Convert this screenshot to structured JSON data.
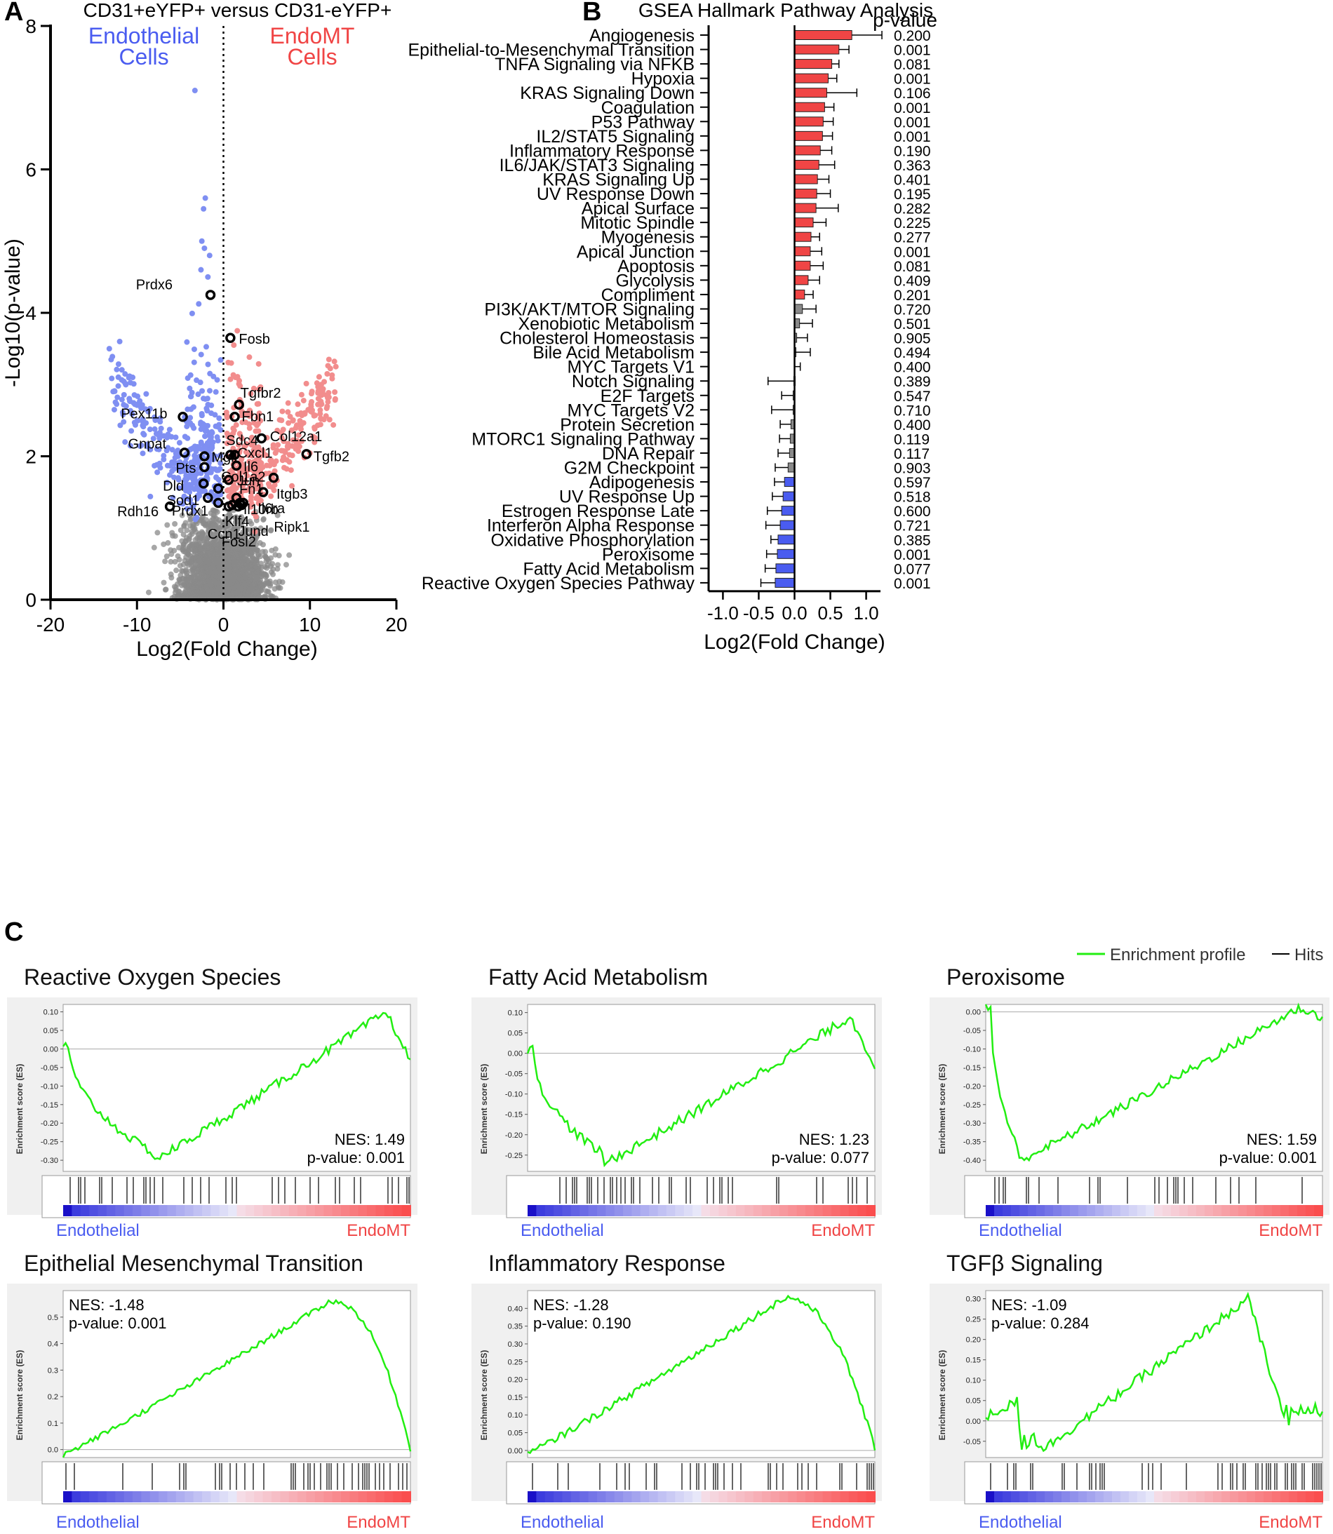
{
  "panels": {
    "a": "A",
    "b": "B",
    "c": "C"
  },
  "colors": {
    "blue": "#4a5cf0",
    "red": "#f04545",
    "grey": "#8a8a8a",
    "green": "#22ee11",
    "lightblue": "#7f8ff2",
    "lightred": "#f28d8d"
  },
  "chart_data": [
    {
      "type": "scatter",
      "id": "volcano",
      "title": "CD31+eYFP+ versus CD31-eYFP+",
      "xlabel": "Log2(Fold Change)",
      "ylabel": "-Log10(p-value)",
      "xlim": [
        -20,
        20
      ],
      "ylim": [
        0,
        8
      ],
      "xticks": [
        -20,
        -10,
        0,
        10,
        20
      ],
      "yticks": [
        0,
        2,
        4,
        6,
        8
      ],
      "group_labels": {
        "left_line1": "Endothelial",
        "left_line2": "Cells",
        "right_line1": "EndoMT",
        "right_line2": "Cells"
      },
      "highlighted_genes": [
        {
          "name": "Prdx6",
          "x": -1.5,
          "y": 4.25
        },
        {
          "name": "Fosb",
          "x": 0.8,
          "y": 3.65
        },
        {
          "name": "Tgfbr2",
          "x": 1.8,
          "y": 2.72
        },
        {
          "name": "Fbn1",
          "x": 1.3,
          "y": 2.55
        },
        {
          "name": "Pex11b",
          "x": -4.7,
          "y": 2.55
        },
        {
          "name": "Col12a1",
          "x": 4.4,
          "y": 2.25
        },
        {
          "name": "Tgfb2",
          "x": 9.6,
          "y": 2.03
        },
        {
          "name": "Sdc4",
          "x": 0.8,
          "y": 2.02
        },
        {
          "name": "Cxcl1",
          "x": 1.3,
          "y": 2.02
        },
        {
          "name": "Gnpat",
          "x": -4.5,
          "y": 2.05
        },
        {
          "name": "Mgll",
          "x": -2.2,
          "y": 2.0
        },
        {
          "name": "Il6",
          "x": 1.5,
          "y": 1.87
        },
        {
          "name": "Pts",
          "x": -2.2,
          "y": 1.85
        },
        {
          "name": "Itgb3",
          "x": 5.8,
          "y": 1.7
        },
        {
          "name": "Jun",
          "x": 0.6,
          "y": 1.67
        },
        {
          "name": "Dld",
          "x": -2.3,
          "y": 1.62
        },
        {
          "name": "Col1a2",
          "x": -0.6,
          "y": 1.55
        },
        {
          "name": "Sod1",
          "x": -1.8,
          "y": 1.42
        },
        {
          "name": "Il6ra",
          "x": 4.6,
          "y": 1.5
        },
        {
          "name": "Fn1",
          "x": 1.5,
          "y": 1.42
        },
        {
          "name": "Il10rb",
          "x": 2.3,
          "y": 1.35
        },
        {
          "name": "Prdx1",
          "x": -0.6,
          "y": 1.35
        },
        {
          "name": "Rdh16",
          "x": -6.2,
          "y": 1.3
        },
        {
          "name": "Klf4",
          "x": 1.0,
          "y": 1.32
        },
        {
          "name": "Ripk1",
          "x": 2.1,
          "y": 1.32
        },
        {
          "name": "Jund",
          "x": 1.7,
          "y": 1.3
        },
        {
          "name": "Ccn1",
          "x": 0.6,
          "y": 1.3
        },
        {
          "name": "Fosl2",
          "x": 1.9,
          "y": 1.35
        }
      ]
    },
    {
      "type": "bar",
      "id": "gsea-hallmark",
      "title": "GSEA Hallmark Pathway Analysis",
      "xlabel": "Log2(Fold Change)",
      "pvalue_header": "p-value",
      "xlim": [
        -1.2,
        1.2
      ],
      "xticks": [
        "-1.0",
        "-0.5",
        "0.0",
        "0.5",
        "1.0"
      ],
      "rows": [
        {
          "label": "Angiogenesis",
          "value": 0.8,
          "err": 0.42,
          "p": "0.200",
          "color": "red"
        },
        {
          "label": "Epithelial-to-Mesenchymal Transition",
          "value": 0.62,
          "err": 0.14,
          "p": "0.001",
          "color": "red"
        },
        {
          "label": "TNFA Signaling via NFKB",
          "value": 0.52,
          "err": 0.1,
          "p": "0.081",
          "color": "red"
        },
        {
          "label": "Hypoxia",
          "value": 0.47,
          "err": 0.12,
          "p": "0.001",
          "color": "red"
        },
        {
          "label": "KRAS Signaling Down",
          "value": 0.45,
          "err": 0.42,
          "p": "0.106",
          "color": "red"
        },
        {
          "label": "Coagulation",
          "value": 0.42,
          "err": 0.13,
          "p": "0.001",
          "color": "red"
        },
        {
          "label": "P53 Pathway",
          "value": 0.4,
          "err": 0.14,
          "p": "0.001",
          "color": "red"
        },
        {
          "label": "IL2/STAT5 Signaling",
          "value": 0.39,
          "err": 0.14,
          "p": "0.001",
          "color": "red"
        },
        {
          "label": "Inflammatory Response",
          "value": 0.36,
          "err": 0.16,
          "p": "0.190",
          "color": "red"
        },
        {
          "label": "IL6/JAK/STAT3 Signaling",
          "value": 0.34,
          "err": 0.22,
          "p": "0.363",
          "color": "red"
        },
        {
          "label": "KRAS Signaling Up",
          "value": 0.32,
          "err": 0.16,
          "p": "0.401",
          "color": "red"
        },
        {
          "label": "UV Response Down",
          "value": 0.31,
          "err": 0.19,
          "p": "0.195",
          "color": "red"
        },
        {
          "label": "Apical Surface",
          "value": 0.3,
          "err": 0.31,
          "p": "0.282",
          "color": "red"
        },
        {
          "label": "Mitotic Spindle",
          "value": 0.26,
          "err": 0.18,
          "p": "0.225",
          "color": "red"
        },
        {
          "label": "Myogenesis",
          "value": 0.23,
          "err": 0.12,
          "p": "0.277",
          "color": "red"
        },
        {
          "label": "Apical Junction",
          "value": 0.22,
          "err": 0.16,
          "p": "0.001",
          "color": "red"
        },
        {
          "label": "Apoptosis",
          "value": 0.22,
          "err": 0.18,
          "p": "0.081",
          "color": "red"
        },
        {
          "label": "Glycolysis",
          "value": 0.19,
          "err": 0.16,
          "p": "0.409",
          "color": "red"
        },
        {
          "label": "Compliment",
          "value": 0.14,
          "err": 0.12,
          "p": "0.201",
          "color": "red"
        },
        {
          "label": "PI3K/AKT/MTOR Signaling",
          "value": 0.11,
          "err": 0.19,
          "p": "0.720",
          "color": "grey"
        },
        {
          "label": "Xenobiotic Metabolism",
          "value": 0.07,
          "err": 0.18,
          "p": "0.501",
          "color": "grey"
        },
        {
          "label": "Cholesterol Homeostasis",
          "value": 0.03,
          "err": 0.15,
          "p": "0.905",
          "color": "grey"
        },
        {
          "label": "Bile Acid Metabolism",
          "value": 0.01,
          "err": 0.21,
          "p": "0.494",
          "color": "grey"
        },
        {
          "label": "MYC Targets V1",
          "value": 0.0,
          "err": 0.08,
          "p": "0.400",
          "color": "grey"
        },
        {
          "label": "Notch Signaling",
          "value": -0.01,
          "err": 0.36,
          "p": "0.389",
          "color": "grey"
        },
        {
          "label": "E2F Targets",
          "value": -0.02,
          "err": 0.16,
          "p": "0.547",
          "color": "grey"
        },
        {
          "label": "MYC Targets V2",
          "value": -0.02,
          "err": 0.3,
          "p": "0.710",
          "color": "grey"
        },
        {
          "label": "Protein Secretion",
          "value": -0.05,
          "err": 0.15,
          "p": "0.400",
          "color": "grey"
        },
        {
          "label": "MTORC1 Signaling Pathway",
          "value": -0.06,
          "err": 0.15,
          "p": "0.119",
          "color": "grey"
        },
        {
          "label": "DNA Repair",
          "value": -0.07,
          "err": 0.16,
          "p": "0.117",
          "color": "grey"
        },
        {
          "label": "G2M Checkpoint",
          "value": -0.09,
          "err": 0.18,
          "p": "0.903",
          "color": "grey"
        },
        {
          "label": "Adipogenesis",
          "value": -0.14,
          "err": 0.14,
          "p": "0.597",
          "color": "blue"
        },
        {
          "label": "UV Response Up",
          "value": -0.16,
          "err": 0.15,
          "p": "0.518",
          "color": "blue"
        },
        {
          "label": "Estrogen Response Late",
          "value": -0.18,
          "err": 0.2,
          "p": "0.600",
          "color": "blue"
        },
        {
          "label": "Interferon Alpha Response",
          "value": -0.2,
          "err": 0.2,
          "p": "0.721",
          "color": "blue"
        },
        {
          "label": "Oxidative Phosphorylation",
          "value": -0.23,
          "err": 0.1,
          "p": "0.385",
          "color": "blue"
        },
        {
          "label": "Peroxisome",
          "value": -0.24,
          "err": 0.15,
          "p": "0.001",
          "color": "blue"
        },
        {
          "label": "Fatty Acid Metabolism",
          "value": -0.26,
          "err": 0.15,
          "p": "0.077",
          "color": "blue"
        },
        {
          "label": "Reactive Oxygen Species Pathway",
          "value": -0.27,
          "err": 0.2,
          "p": "0.001",
          "color": "blue"
        }
      ]
    },
    {
      "type": "line",
      "id": "gsea-enrichment-plots",
      "legend": {
        "profile": "Enrichment profile",
        "hits": "Hits"
      },
      "ylabel": "Enrichment score (ES)",
      "left_label": "Endothelial",
      "right_label": "EndoMT",
      "plots": [
        {
          "title": "Reactive Oxygen Species",
          "nes": "NES: 1.49",
          "p": "p-value: 0.001",
          "ylim": [
            -0.33,
            0.12
          ],
          "yticks": [
            "0.10",
            "0.05",
            "0.00",
            "-0.05",
            "-0.10",
            "-0.15",
            "-0.20",
            "-0.25",
            "-0.30"
          ],
          "tick_values": [
            0.1,
            0.05,
            0,
            -0.05,
            -0.1,
            -0.15,
            -0.2,
            -0.25,
            -0.3
          ],
          "shape": "negative",
          "minpos": 0.26,
          "minval": -0.3,
          "endmax": 0.1,
          "text_pos": "low"
        },
        {
          "title": "Fatty Acid Metabolism",
          "nes": "NES: 1.23",
          "p": "p-value: 0.077",
          "ylim": [
            -0.29,
            0.12
          ],
          "yticks": [
            "0.10",
            "0.05",
            "0.00",
            "-0.05",
            "-0.10",
            "-0.15",
            "-0.20",
            "-0.25"
          ],
          "tick_values": [
            0.1,
            0.05,
            0,
            -0.05,
            -0.1,
            -0.15,
            -0.2,
            -0.25
          ],
          "shape": "negative",
          "minpos": 0.22,
          "minval": -0.27,
          "endmax": 0.09,
          "text_pos": "low"
        },
        {
          "title": "Peroxisome",
          "nes": "NES: 1.59",
          "p": "p-value: 0.001",
          "ylim": [
            -0.43,
            0.02
          ],
          "yticks": [
            "0.00",
            "-0.05",
            "-0.10",
            "-0.15",
            "-0.20",
            "-0.25",
            "-0.30",
            "-0.35",
            "-0.40"
          ],
          "tick_values": [
            0,
            -0.05,
            -0.1,
            -0.15,
            -0.2,
            -0.25,
            -0.3,
            -0.35,
            -0.4
          ],
          "shape": "negative",
          "minpos": 0.1,
          "minval": -0.4,
          "endmax": 0.01,
          "text_pos": "low"
        },
        {
          "title": "Epithelial Mesenchymal Transition",
          "nes": "NES: -1.48",
          "p": "p-value: 0.001",
          "ylim": [
            -0.03,
            0.6
          ],
          "yticks": [
            "0.5",
            "0.4",
            "0.3",
            "0.2",
            "0.1",
            "0.0"
          ],
          "tick_values": [
            0.5,
            0.4,
            0.3,
            0.2,
            0.1,
            0
          ],
          "shape": "positive",
          "maxpos": 0.77,
          "maxval": 0.56,
          "startmin": -0.02,
          "text_pos": "high"
        },
        {
          "title": "Inflammatory Response",
          "nes": "NES: -1.28",
          "p": "p-value: 0.190",
          "ylim": [
            -0.02,
            0.45
          ],
          "yticks": [
            "0.40",
            "0.35",
            "0.30",
            "0.25",
            "0.20",
            "0.15",
            "0.10",
            "0.05",
            "0.00"
          ],
          "tick_values": [
            0.4,
            0.35,
            0.3,
            0.25,
            0.2,
            0.15,
            0.1,
            0.05,
            0
          ],
          "shape": "positive",
          "maxpos": 0.74,
          "maxval": 0.43,
          "startmin": -0.01,
          "text_pos": "high"
        },
        {
          "title": "TGFβ Signaling",
          "nes": "NES: -1.09",
          "p": "p-value: 0.284",
          "ylim": [
            -0.09,
            0.32
          ],
          "yticks": [
            "0.30",
            "0.25",
            "0.20",
            "0.15",
            "0.10",
            "0.05",
            "0.00",
            "-0.05"
          ],
          "tick_values": [
            0.3,
            0.25,
            0.2,
            0.15,
            0.1,
            0.05,
            0,
            -0.05
          ],
          "shape": "tgfb",
          "maxpos": 0.78,
          "maxval": 0.3,
          "startmin": -0.07,
          "text_pos": "high"
        }
      ]
    }
  ]
}
